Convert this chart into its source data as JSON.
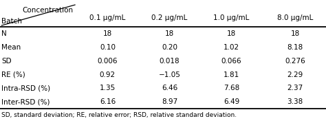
{
  "header_row": [
    "",
    "0.1 μg/mL",
    "0.2 μg/mL",
    "1.0 μg/mL",
    "8.0 μg/mL"
  ],
  "rows": [
    [
      "N",
      "18",
      "18",
      "18",
      "18"
    ],
    [
      "Mean",
      "0.10",
      "0.20",
      "1.02",
      "8.18"
    ],
    [
      "SD",
      "0.006",
      "0.018",
      "0.066",
      "0.276"
    ],
    [
      "RE (%)",
      "0.92",
      "−1.05",
      "1.81",
      "2.29"
    ],
    [
      "Intra-RSD (%)",
      "1.35",
      "6.46",
      "7.68",
      "2.37"
    ],
    [
      "Inter-RSD (%)",
      "6.16",
      "8.97",
      "6.49",
      "3.38"
    ]
  ],
  "footnote": "SD, standard deviation; RE, relative error; RSD, relative standard deviation.",
  "col_header_top": "Concentration",
  "col_header_bottom": "Batch",
  "bg_color": "#ffffff",
  "text_color": "#000000",
  "figsize": [
    4.74,
    1.76
  ],
  "dpi": 100
}
